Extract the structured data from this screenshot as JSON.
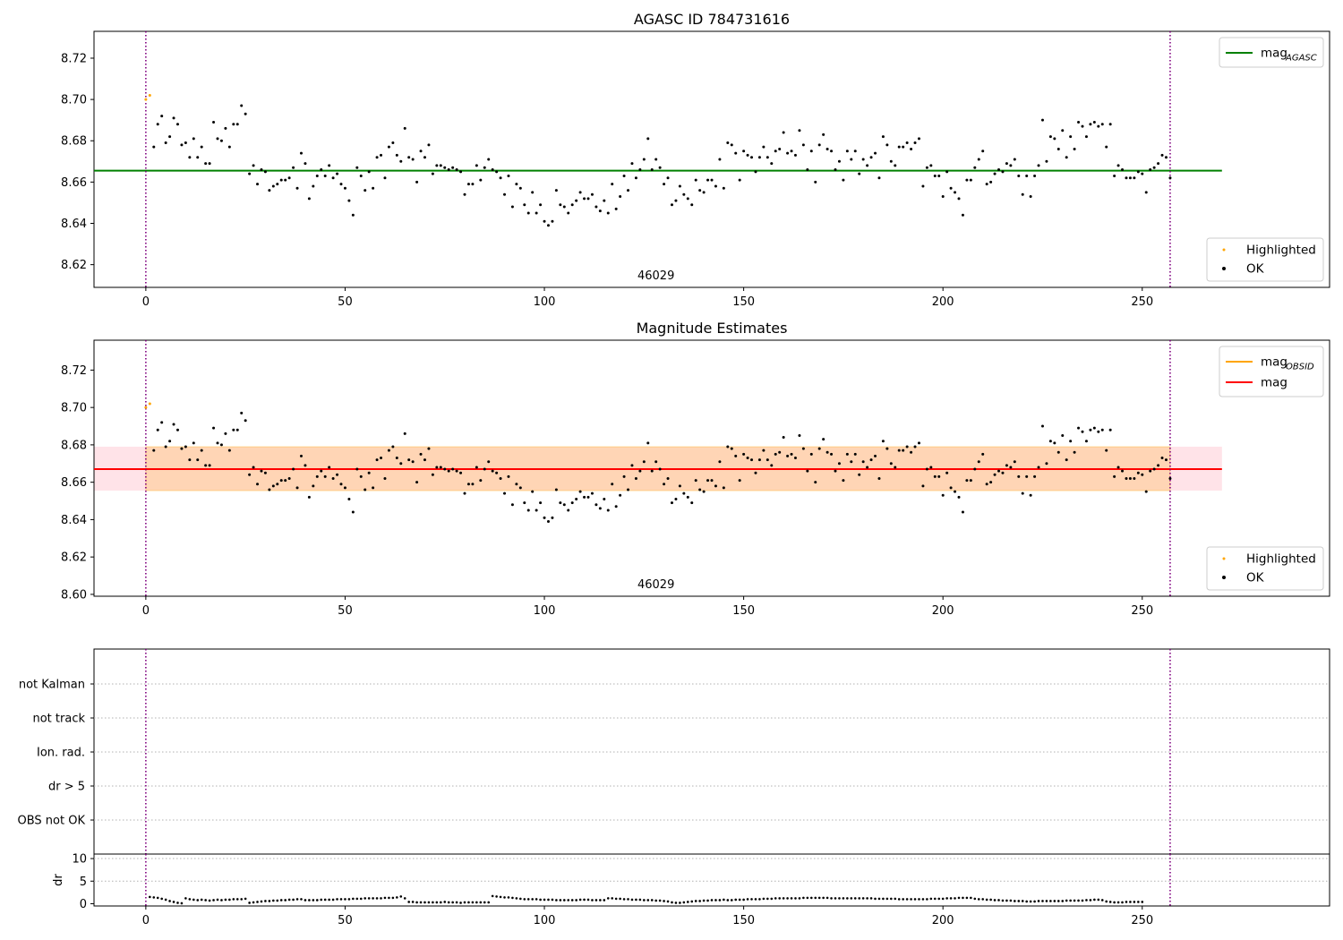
{
  "chart_data": [
    {
      "name": "agasc",
      "type": "scatter",
      "title": "AGASC ID 784731616",
      "xlim": [
        -13,
        297
      ],
      "ylim": [
        8.609,
        8.733
      ],
      "xticks": [
        0,
        50,
        100,
        150,
        200,
        250
      ],
      "yticks": [
        8.62,
        8.64,
        8.66,
        8.68,
        8.7,
        8.72
      ],
      "obsid_label": "46029",
      "obsid_label_x": 128,
      "vlines": [
        0,
        257
      ],
      "hline": {
        "name": "mag",
        "sub": "AGASC",
        "value": 8.6655,
        "x": [
          -13,
          270
        ],
        "color": "#008000"
      },
      "legend_lines": [
        {
          "name": "mag",
          "sub": "AGASC",
          "color": "#008000"
        }
      ],
      "legend_points": [
        {
          "name": "Highlighted",
          "color": "#ffa500"
        },
        {
          "name": "OK",
          "color": "#000000"
        }
      ],
      "highlighted": [
        [
          0,
          8.7
        ],
        [
          1,
          8.702
        ]
      ]
    },
    {
      "name": "mag-estimates",
      "type": "scatter",
      "title": "Magnitude Estimates",
      "xlim": [
        -13,
        297
      ],
      "ylim": [
        8.599,
        8.736
      ],
      "xticks": [
        0,
        50,
        100,
        150,
        200,
        250
      ],
      "yticks": [
        8.6,
        8.62,
        8.64,
        8.66,
        8.68,
        8.7,
        8.72
      ],
      "obsid_label": "46029",
      "obsid_label_x": 128,
      "vlines": [
        0,
        257
      ],
      "band_pink": {
        "x": [
          -13,
          270
        ],
        "y": [
          8.6555,
          8.679
        ],
        "color": "#ffc0cb"
      },
      "band_orange": {
        "x": [
          0,
          257
        ],
        "y": [
          8.6555,
          8.679
        ],
        "color": "#ffa500"
      },
      "hline": {
        "name": "mag",
        "value": 8.667,
        "x": [
          -13,
          270
        ],
        "color": "#ff0000"
      },
      "hline_obsid": {
        "name": "mag",
        "sub": "OBSID",
        "value": 8.667,
        "x": [
          0,
          257
        ],
        "color": "#ffa500"
      },
      "legend_lines": [
        {
          "name": "mag",
          "sub": "OBSID",
          "color": "#ffa500"
        },
        {
          "name": "mag",
          "sub": "",
          "color": "#ff0000"
        }
      ],
      "legend_points": [
        {
          "name": "Highlighted",
          "color": "#ffa500"
        },
        {
          "name": "OK",
          "color": "#000000"
        }
      ],
      "highlighted": [
        [
          0,
          8.7
        ],
        [
          1,
          8.702
        ]
      ]
    },
    {
      "name": "flags",
      "type": "scatter",
      "title": "",
      "xlim": [
        -13,
        297
      ],
      "categories": [
        "not Kalman",
        "not track",
        "Ion. rad.",
        "dr > 5",
        "OBS not OK"
      ],
      "vlines": [
        0,
        257
      ]
    },
    {
      "name": "dr",
      "type": "scatter",
      "title": "",
      "ylabel": "dr",
      "xlim": [
        -13,
        297
      ],
      "ylim": [
        -0.5,
        11
      ],
      "yticks": [
        0,
        5,
        10
      ],
      "xticks": [
        0,
        50,
        100,
        150,
        200,
        250
      ],
      "vlines": [
        0,
        257
      ]
    }
  ],
  "ok_magnitudes": [
    8.677,
    8.688,
    8.692,
    8.679,
    8.682,
    8.691,
    8.688,
    8.678,
    8.679,
    8.672,
    8.681,
    8.672,
    8.677,
    8.669,
    8.669,
    8.689,
    8.681,
    8.68,
    8.686,
    8.677,
    8.688,
    8.688,
    8.697,
    8.693,
    8.664,
    8.668,
    8.659,
    8.666,
    8.665,
    8.656,
    8.658,
    8.659,
    8.661,
    8.661,
    8.662,
    8.667,
    8.657,
    8.674,
    8.669,
    8.652,
    8.658,
    8.663,
    8.666,
    8.663,
    8.668,
    8.662,
    8.664,
    8.659,
    8.657,
    8.651,
    8.644,
    8.667,
    8.663,
    8.656,
    8.665,
    8.657,
    8.672,
    8.673,
    8.662,
    8.677,
    8.679,
    8.673,
    8.67,
    8.686,
    8.672,
    8.671,
    8.66,
    8.675,
    8.672,
    8.678,
    8.664,
    8.668,
    8.668,
    8.667,
    8.666,
    8.667,
    8.666,
    8.665,
    8.654,
    8.659,
    8.659,
    8.668,
    8.661,
    8.667,
    8.671,
    8.666,
    8.665,
    8.662,
    8.654,
    8.663,
    8.648,
    8.659,
    8.657,
    8.649,
    8.645,
    8.655,
    8.645,
    8.649,
    8.641,
    8.639,
    8.641,
    8.656,
    8.649,
    8.648,
    8.645,
    8.649,
    8.651,
    8.655,
    8.652,
    8.652,
    8.654,
    8.648,
    8.646,
    8.651,
    8.645,
    8.659,
    8.647,
    8.653,
    8.663,
    8.656,
    8.669,
    8.662,
    8.666,
    8.671,
    8.681,
    8.666,
    8.671,
    8.667,
    8.659,
    8.662,
    8.649,
    8.651,
    8.658,
    8.654,
    8.652,
    8.649,
    8.661,
    8.656,
    8.655,
    8.661,
    8.661,
    8.658,
    8.671,
    8.657,
    8.679,
    8.678,
    8.674,
    8.661,
    8.675,
    8.673,
    8.672,
    8.665,
    8.672,
    8.677,
    8.672,
    8.669,
    8.675,
    8.676,
    8.684,
    8.674,
    8.675,
    8.673,
    8.685,
    8.678,
    8.666,
    8.675,
    8.66,
    8.678,
    8.683,
    8.676,
    8.675,
    8.666,
    8.67,
    8.661,
    8.675,
    8.671,
    8.675,
    8.664,
    8.671,
    8.668,
    8.672,
    8.674,
    8.662,
    8.682,
    8.678,
    8.67,
    8.668,
    8.677,
    8.677,
    8.679,
    8.676,
    8.679,
    8.681,
    8.658,
    8.667,
    8.668,
    8.663,
    8.663,
    8.653,
    8.665,
    8.657,
    8.655,
    8.652,
    8.644,
    8.661,
    8.661,
    8.667,
    8.671,
    8.675,
    8.659,
    8.66,
    8.664,
    8.666,
    8.665,
    8.669,
    8.668,
    8.671,
    8.663,
    8.654,
    8.663,
    8.653,
    8.663,
    8.668,
    8.69,
    8.67,
    8.682,
    8.681,
    8.676,
    8.685,
    8.672,
    8.682,
    8.676,
    8.689,
    8.687,
    8.682,
    8.688,
    8.689,
    8.687,
    8.688,
    8.677,
    8.688,
    8.663,
    8.668,
    8.666,
    8.662,
    8.662,
    8.662,
    8.665,
    8.664,
    8.655,
    8.666,
    8.667,
    8.669,
    8.673,
    8.672,
    8.662
  ],
  "dr_values": [
    1.5,
    1.4,
    1.3,
    1.1,
    0.9,
    0.6,
    0.4,
    0.2,
    0.1,
    1.2,
    1.0,
    0.9,
    0.8,
    0.9,
    0.8,
    0.7,
    0.8,
    0.9,
    0.8,
    0.9,
    0.9,
    1.0,
    1.0,
    1.0,
    1.1,
    0.2,
    0.3,
    0.4,
    0.5,
    0.6,
    0.6,
    0.7,
    0.7,
    0.8,
    0.8,
    0.9,
    0.9,
    1.0,
    1.0,
    0.8,
    0.8,
    0.8,
    0.8,
    0.9,
    0.9,
    0.9,
    0.9,
    1.0,
    1.0,
    1.0,
    1.0,
    1.1,
    1.1,
    1.1,
    1.2,
    1.2,
    1.2,
    1.2,
    1.2,
    1.3,
    1.3,
    1.3,
    1.4,
    1.6,
    1.2,
    0.4,
    0.4,
    0.3,
    0.3,
    0.3,
    0.3,
    0.3,
    0.3,
    0.3,
    0.4,
    0.3,
    0.3,
    0.3,
    0.2,
    0.3,
    0.3,
    0.3,
    0.3,
    0.3,
    0.3,
    0.3,
    1.7,
    1.6,
    1.5,
    1.4,
    1.4,
    1.3,
    1.2,
    1.1,
    1.0,
    1.0,
    1.0,
    1.0,
    0.9,
    0.9,
    0.9,
    0.9,
    0.8,
    0.8,
    0.8,
    0.8,
    0.8,
    0.8,
    0.9,
    0.9,
    0.9,
    0.8,
    0.8,
    0.8,
    0.8,
    1.2,
    1.2,
    1.1,
    1.1,
    1.0,
    1.0,
    0.9,
    0.9,
    0.9,
    0.8,
    0.8,
    0.8,
    0.7,
    0.7,
    0.6,
    0.5,
    0.3,
    0.2,
    0.2,
    0.3,
    0.4,
    0.5,
    0.6,
    0.6,
    0.7,
    0.7,
    0.8,
    0.8,
    0.8,
    0.9,
    0.8,
    0.8,
    0.9,
    0.9,
    0.9,
    1.0,
    1.0,
    1.0,
    1.0,
    1.1,
    1.1,
    1.1,
    1.2,
    1.2,
    1.2,
    1.2,
    1.2,
    1.2,
    1.2,
    1.3,
    1.3,
    1.3,
    1.3,
    1.3,
    1.3,
    1.3,
    1.2,
    1.2,
    1.2,
    1.2,
    1.2,
    1.2,
    1.2,
    1.2,
    1.2,
    1.2,
    1.2,
    1.1,
    1.1,
    1.1,
    1.1,
    1.1,
    1.1,
    1.0,
    1.0,
    1.0,
    1.0,
    1.0,
    1.0,
    1.0,
    1.0,
    1.1,
    1.1,
    1.1,
    1.1,
    1.2,
    1.2,
    1.2,
    1.3,
    1.3,
    1.3,
    1.3,
    1.1,
    1.0,
    1.0,
    0.9,
    0.9,
    0.8,
    0.8,
    0.7,
    0.7,
    0.7,
    0.6,
    0.6,
    0.6,
    0.5,
    0.5,
    0.5,
    0.6,
    0.6,
    0.6,
    0.6,
    0.6,
    0.6,
    0.6,
    0.7,
    0.7,
    0.7,
    0.7,
    0.7,
    0.8,
    0.8,
    0.9,
    0.9,
    0.8,
    0.5,
    0.4,
    0.3,
    0.3,
    0.3,
    0.4,
    0.4,
    0.4,
    0.4,
    0.4
  ]
}
